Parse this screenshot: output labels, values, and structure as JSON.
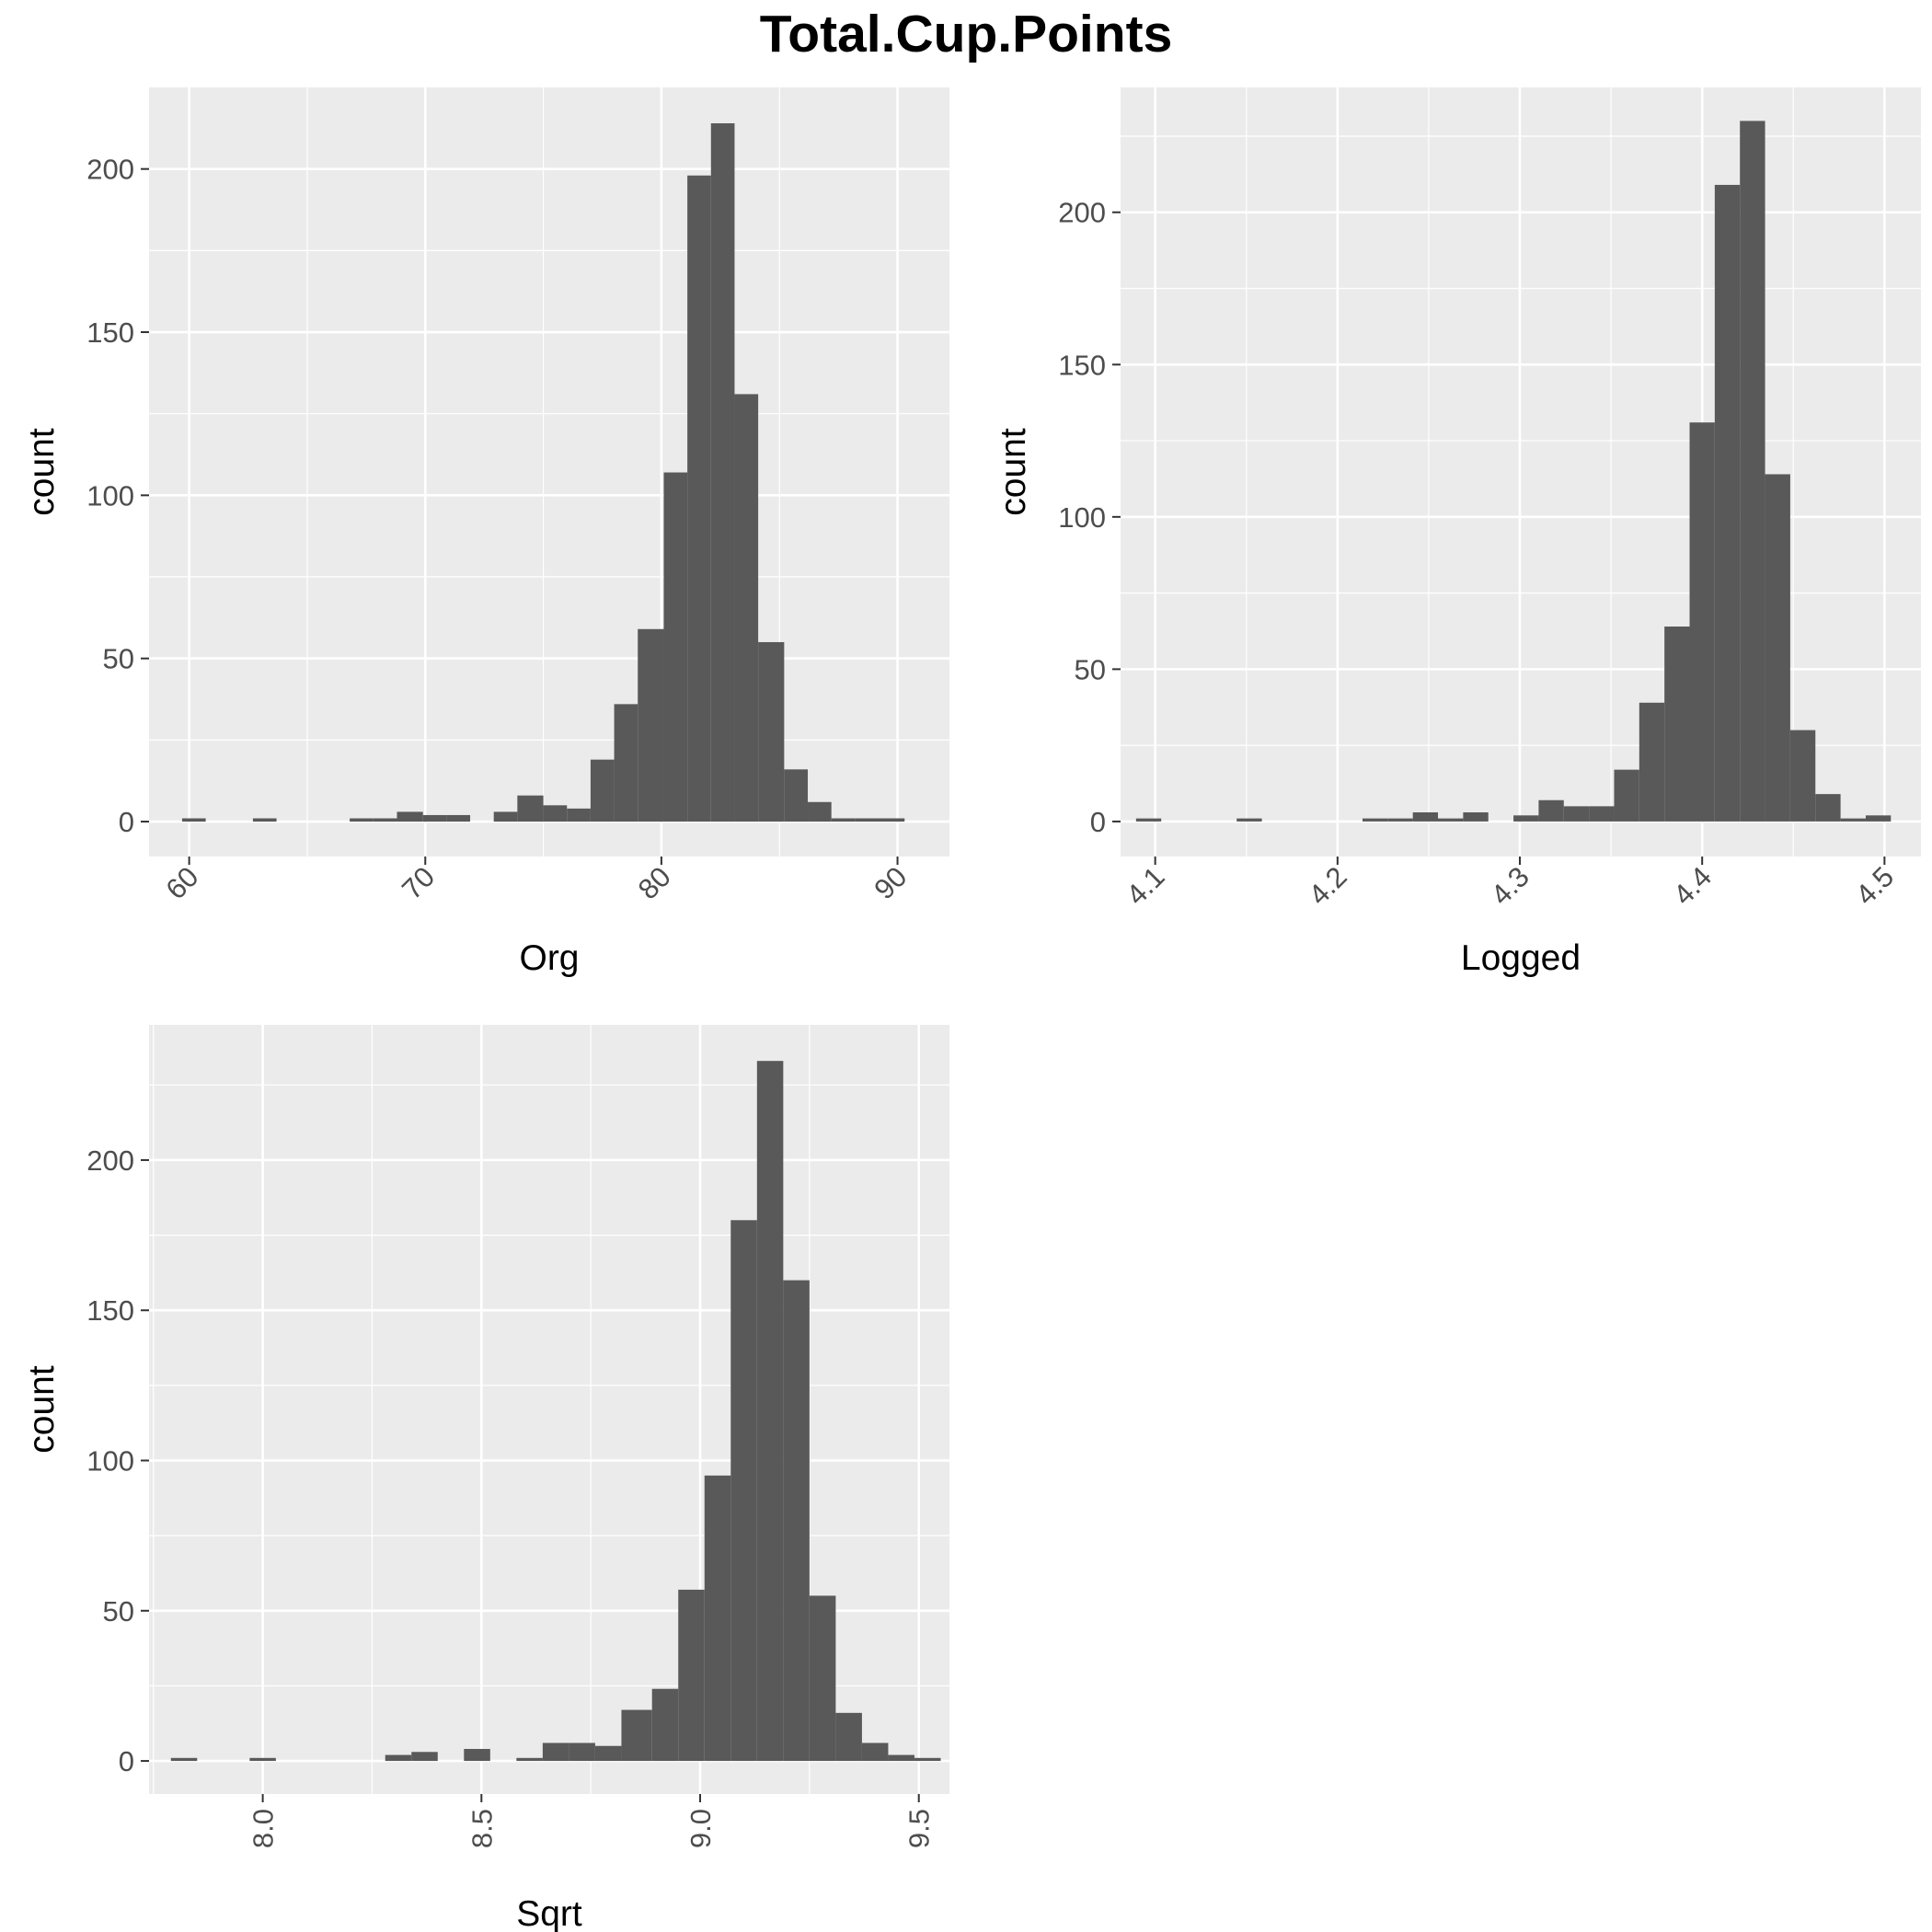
{
  "title": "Total.Cup.Points",
  "chart_data": [
    {
      "type": "bar",
      "subtype": "histogram",
      "xlabel": "Org",
      "ylabel": "count",
      "xlim": [
        58.3,
        92.2
      ],
      "ylim": [
        -10.7,
        225
      ],
      "xticks": [
        60,
        70,
        80,
        90
      ],
      "xtick_labels": [
        "60",
        "70",
        "80",
        "90"
      ],
      "x_tick_rotation": "45",
      "yticks": [
        0,
        50,
        100,
        150,
        200
      ],
      "ytick_labels": [
        "0",
        "50",
        "100",
        "150",
        "200"
      ],
      "bin_width": 1.02,
      "bins": [
        {
          "x0": 59.7,
          "x1": 60.7,
          "count": 1
        },
        {
          "x0": 62.7,
          "x1": 63.7,
          "count": 1
        },
        {
          "x0": 66.8,
          "x1": 67.8,
          "count": 1
        },
        {
          "x0": 67.8,
          "x1": 68.8,
          "count": 1
        },
        {
          "x0": 68.8,
          "x1": 69.9,
          "count": 3
        },
        {
          "x0": 69.9,
          "x1": 70.9,
          "count": 2
        },
        {
          "x0": 70.9,
          "x1": 71.9,
          "count": 2
        },
        {
          "x0": 72.9,
          "x1": 73.9,
          "count": 3
        },
        {
          "x0": 73.9,
          "x1": 75.0,
          "count": 8
        },
        {
          "x0": 75.0,
          "x1": 76.0,
          "count": 5
        },
        {
          "x0": 76.0,
          "x1": 77.0,
          "count": 4
        },
        {
          "x0": 77.0,
          "x1": 78.0,
          "count": 19
        },
        {
          "x0": 78.0,
          "x1": 79.0,
          "count": 36
        },
        {
          "x0": 79.0,
          "x1": 80.1,
          "count": 59
        },
        {
          "x0": 80.1,
          "x1": 81.1,
          "count": 107
        },
        {
          "x0": 81.1,
          "x1": 82.1,
          "count": 198
        },
        {
          "x0": 82.1,
          "x1": 83.1,
          "count": 214
        },
        {
          "x0": 83.1,
          "x1": 84.1,
          "count": 131
        },
        {
          "x0": 84.1,
          "x1": 85.2,
          "count": 55
        },
        {
          "x0": 85.2,
          "x1": 86.2,
          "count": 16
        },
        {
          "x0": 86.2,
          "x1": 87.2,
          "count": 6
        },
        {
          "x0": 87.2,
          "x1": 88.2,
          "count": 1
        },
        {
          "x0": 88.2,
          "x1": 89.2,
          "count": 1
        },
        {
          "x0": 89.2,
          "x1": 90.3,
          "count": 1
        }
      ],
      "fill_color": "#595959",
      "panel_background": "#ebebeb",
      "grid": true
    },
    {
      "type": "bar",
      "subtype": "histogram",
      "xlabel": "Logged",
      "ylabel": "count",
      "xlim": [
        4.081,
        4.52
      ],
      "ylim": [
        -11.5,
        241
      ],
      "xticks": [
        4.1,
        4.2,
        4.3,
        4.4,
        4.5
      ],
      "xtick_labels": [
        "4.1",
        "4.2",
        "4.3",
        "4.4",
        "4.5"
      ],
      "x_tick_rotation": "45",
      "yticks": [
        0,
        50,
        100,
        150,
        200
      ],
      "ytick_labels": [
        "0",
        "50",
        "100",
        "150",
        "200"
      ],
      "bin_width": 0.0138,
      "bins": [
        {
          "x0": 4.0895,
          "x1": 4.1033,
          "count": 1
        },
        {
          "x0": 4.1447,
          "x1": 4.1585,
          "count": 1
        },
        {
          "x0": 4.2137,
          "x1": 4.2275,
          "count": 1
        },
        {
          "x0": 4.2275,
          "x1": 4.2413,
          "count": 1
        },
        {
          "x0": 4.2413,
          "x1": 4.2551,
          "count": 3
        },
        {
          "x0": 4.2551,
          "x1": 4.2689,
          "count": 1
        },
        {
          "x0": 4.2689,
          "x1": 4.2827,
          "count": 3
        },
        {
          "x0": 4.2965,
          "x1": 4.3103,
          "count": 2
        },
        {
          "x0": 4.3103,
          "x1": 4.3241,
          "count": 7
        },
        {
          "x0": 4.3241,
          "x1": 4.3379,
          "count": 5
        },
        {
          "x0": 4.3379,
          "x1": 4.3517,
          "count": 5
        },
        {
          "x0": 4.3517,
          "x1": 4.3655,
          "count": 17
        },
        {
          "x0": 4.3655,
          "x1": 4.3793,
          "count": 39
        },
        {
          "x0": 4.3793,
          "x1": 4.3931,
          "count": 64
        },
        {
          "x0": 4.3931,
          "x1": 4.4069,
          "count": 131
        },
        {
          "x0": 4.4069,
          "x1": 4.4207,
          "count": 209
        },
        {
          "x0": 4.4207,
          "x1": 4.4345,
          "count": 230
        },
        {
          "x0": 4.4345,
          "x1": 4.4483,
          "count": 114
        },
        {
          "x0": 4.4483,
          "x1": 4.4621,
          "count": 30
        },
        {
          "x0": 4.4621,
          "x1": 4.4759,
          "count": 9
        },
        {
          "x0": 4.4759,
          "x1": 4.4897,
          "count": 1
        },
        {
          "x0": 4.4897,
          "x1": 4.5035,
          "count": 2
        }
      ],
      "fill_color": "#595959",
      "panel_background": "#ebebeb",
      "grid": true
    },
    {
      "type": "bar",
      "subtype": "histogram",
      "xlabel": "Sqrt",
      "ylabel": "count",
      "xlim": [
        7.74,
        9.57
      ],
      "ylim": [
        -11,
        245
      ],
      "xticks": [
        8.0,
        8.5,
        9.0,
        9.5
      ],
      "xtick_labels": [
        "8.0",
        "8.5",
        "9.0",
        "9.5"
      ],
      "x_tick_rotation": "90",
      "yticks": [
        0,
        50,
        100,
        150,
        200
      ],
      "ytick_labels": [
        "0",
        "50",
        "100",
        "150",
        "200"
      ],
      "bin_width": 0.061,
      "bins": [
        {
          "x0": 7.79,
          "x1": 7.85,
          "count": 1
        },
        {
          "x0": 7.97,
          "x1": 8.03,
          "count": 1
        },
        {
          "x0": 8.28,
          "x1": 8.34,
          "count": 2
        },
        {
          "x0": 8.34,
          "x1": 8.4,
          "count": 3
        },
        {
          "x0": 8.46,
          "x1": 8.52,
          "count": 4
        },
        {
          "x0": 8.58,
          "x1": 8.64,
          "count": 1
        },
        {
          "x0": 8.64,
          "x1": 8.7,
          "count": 6
        },
        {
          "x0": 8.7,
          "x1": 8.76,
          "count": 6
        },
        {
          "x0": 8.76,
          "x1": 8.82,
          "count": 5
        },
        {
          "x0": 8.82,
          "x1": 8.89,
          "count": 17
        },
        {
          "x0": 8.89,
          "x1": 8.95,
          "count": 24
        },
        {
          "x0": 8.95,
          "x1": 9.01,
          "count": 57
        },
        {
          "x0": 9.01,
          "x1": 9.07,
          "count": 95
        },
        {
          "x0": 9.07,
          "x1": 9.13,
          "count": 180
        },
        {
          "x0": 9.13,
          "x1": 9.19,
          "count": 233
        },
        {
          "x0": 9.19,
          "x1": 9.25,
          "count": 160
        },
        {
          "x0": 9.25,
          "x1": 9.31,
          "count": 55
        },
        {
          "x0": 9.31,
          "x1": 9.37,
          "count": 16
        },
        {
          "x0": 9.37,
          "x1": 9.43,
          "count": 6
        },
        {
          "x0": 9.43,
          "x1": 9.49,
          "count": 2
        },
        {
          "x0": 9.49,
          "x1": 9.55,
          "count": 1
        }
      ],
      "fill_color": "#595959",
      "panel_background": "#ebebeb",
      "grid": true
    }
  ]
}
